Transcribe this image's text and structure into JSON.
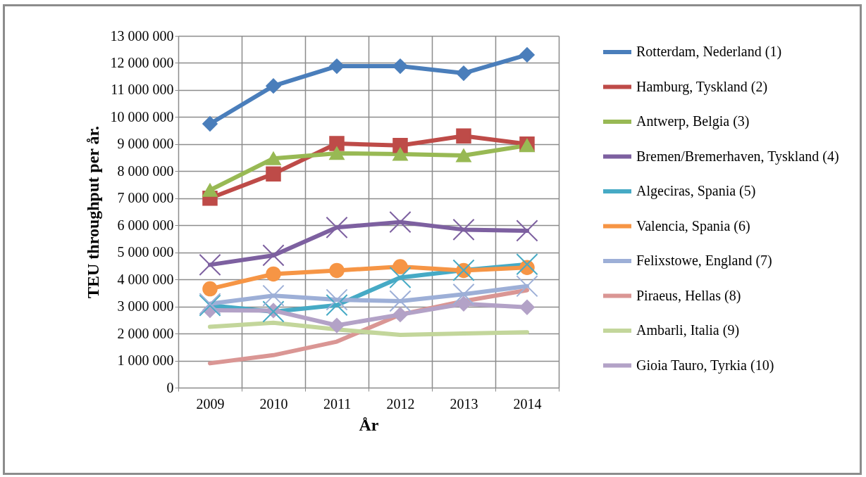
{
  "chart_data": {
    "type": "line",
    "xlabel": "År",
    "ylabel": "TEU throughput per år.",
    "categories": [
      "2009",
      "2010",
      "2011",
      "2012",
      "2013",
      "2014"
    ],
    "ylim": [
      0,
      13000000
    ],
    "yticks": [
      {
        "value": 0,
        "label": "0"
      },
      {
        "value": 1000000,
        "label": "1 000 000"
      },
      {
        "value": 2000000,
        "label": "2 000 000"
      },
      {
        "value": 3000000,
        "label": "3 000 000"
      },
      {
        "value": 4000000,
        "label": "4 000 000"
      },
      {
        "value": 5000000,
        "label": "5 000 000"
      },
      {
        "value": 6000000,
        "label": "6 000 000"
      },
      {
        "value": 7000000,
        "label": "7 000 000"
      },
      {
        "value": 8000000,
        "label": "8 000 000"
      },
      {
        "value": 9000000,
        "label": "9 000 000"
      },
      {
        "value": 10000000,
        "label": "10 000 000"
      },
      {
        "value": 11000000,
        "label": "11 000 000"
      },
      {
        "value": 12000000,
        "label": "12 000 000"
      },
      {
        "value": 13000000,
        "label": "13 000 000"
      }
    ],
    "grid": true,
    "legend": "right",
    "series": [
      {
        "name": "Rotterdam, Nederland (1)",
        "color": "#4a7ebb",
        "marker": "diamond",
        "values": [
          9750000,
          11150000,
          11880000,
          11880000,
          11620000,
          12300000
        ]
      },
      {
        "name": "Hamburg, Tyskland (2)",
        "color": "#be4b48",
        "marker": "square",
        "values": [
          7000000,
          7900000,
          9020000,
          8950000,
          9300000,
          9000000
        ]
      },
      {
        "name": "Antwerp, Belgia (3)",
        "color": "#98b954",
        "marker": "triangle",
        "values": [
          7300000,
          8470000,
          8660000,
          8630000,
          8580000,
          8950000
        ]
      },
      {
        "name": "Bremen/Bremerhaven, Tyskland (4)",
        "color": "#7d60a0",
        "marker": "cross",
        "values": [
          4540000,
          4890000,
          5920000,
          6120000,
          5840000,
          5800000
        ]
      },
      {
        "name": "Algeciras, Spania (5)",
        "color": "#46aac5",
        "marker": "cross",
        "values": [
          3040000,
          2810000,
          3050000,
          4070000,
          4340000,
          4560000
        ]
      },
      {
        "name": "Valencia, Spania (6)",
        "color": "#f69545",
        "marker": "circle",
        "values": [
          3650000,
          4200000,
          4330000,
          4470000,
          4330000,
          4440000
        ]
      },
      {
        "name": "Felixstowe, England (7)",
        "color": "#9dafd7",
        "marker": "cross",
        "values": [
          3100000,
          3400000,
          3250000,
          3200000,
          3450000,
          3750000
        ]
      },
      {
        "name": "Piraeus, Hellas (8)",
        "color": "#da9694",
        "marker": "none",
        "values": [
          900000,
          1200000,
          1700000,
          2700000,
          3200000,
          3600000
        ]
      },
      {
        "name": "Ambarli, Italia (9)",
        "color": "#c3d69b",
        "marker": "none",
        "values": [
          2250000,
          2400000,
          2150000,
          1950000,
          2000000,
          2050000
        ]
      },
      {
        "name": "Gioia Tauro, Tyrkia (10)",
        "color": "#b3a2c7",
        "marker": "diamond",
        "values": [
          2860000,
          2850000,
          2300000,
          2700000,
          3100000,
          2970000
        ]
      }
    ]
  }
}
